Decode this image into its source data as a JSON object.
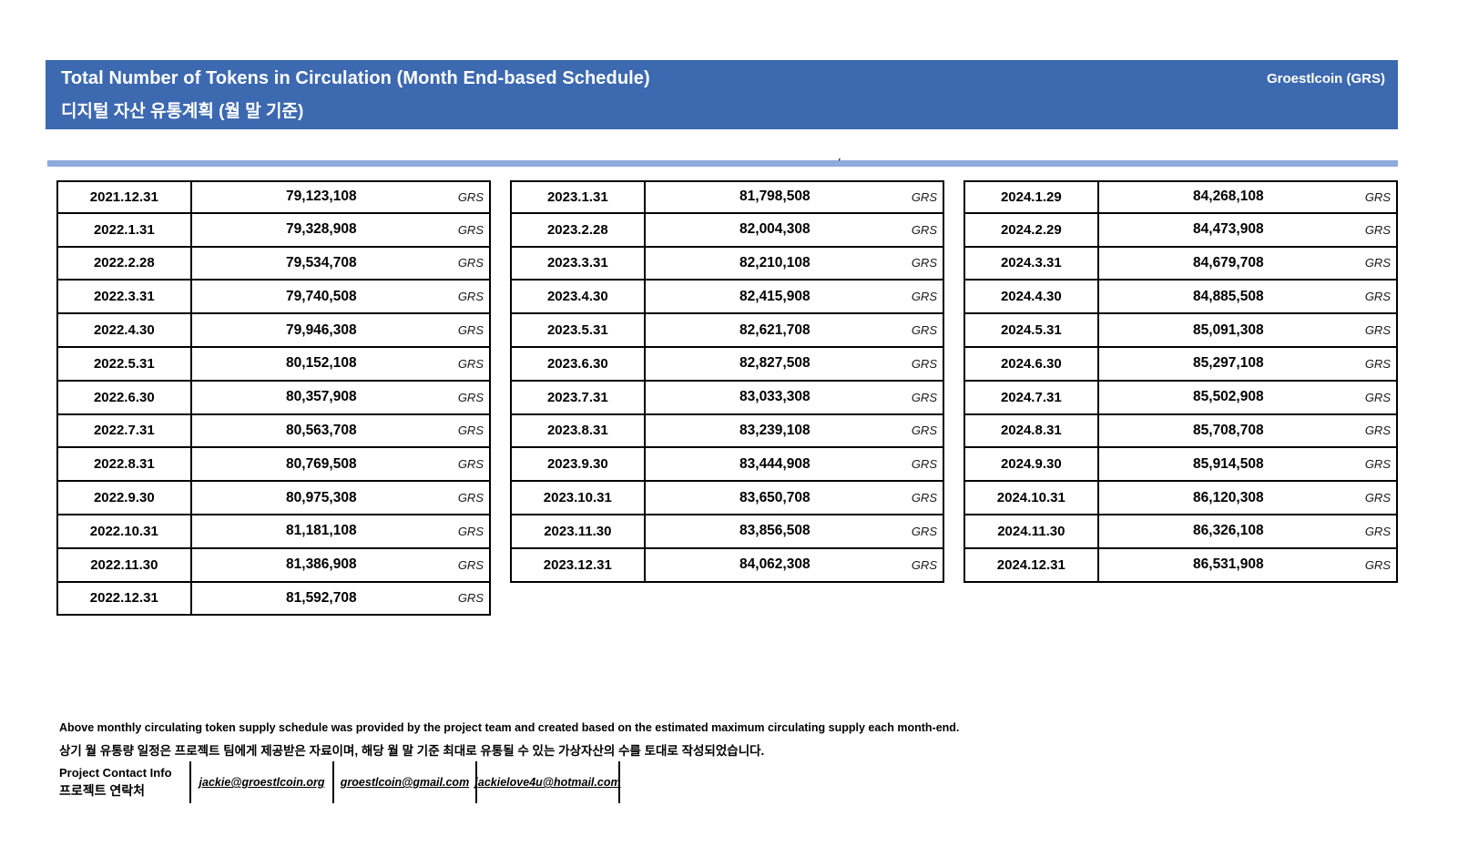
{
  "header": {
    "title_en": "Total Number of Tokens in Circulation (Month End-based Schedule)",
    "title_ko": "디지털 자산 유통계획 (월 말 기준)",
    "badge": "Groestlcoin (GRS)",
    "banner_color": "#3C69B0",
    "divider_color": "#8FAADC",
    "divider_mark": "'"
  },
  "unit": "GRS",
  "tables": [
    {
      "rows": [
        {
          "date": "2021.12.31",
          "value": "79,123,108"
        },
        {
          "date": "2022.1.31",
          "value": "79,328,908"
        },
        {
          "date": "2022.2.28",
          "value": "79,534,708"
        },
        {
          "date": "2022.3.31",
          "value": "79,740,508"
        },
        {
          "date": "2022.4.30",
          "value": "79,946,308"
        },
        {
          "date": "2022.5.31",
          "value": "80,152,108"
        },
        {
          "date": "2022.6.30",
          "value": "80,357,908"
        },
        {
          "date": "2022.7.31",
          "value": "80,563,708"
        },
        {
          "date": "2022.8.31",
          "value": "80,769,508"
        },
        {
          "date": "2022.9.30",
          "value": "80,975,308"
        },
        {
          "date": "2022.10.31",
          "value": "81,181,108"
        },
        {
          "date": "2022.11.30",
          "value": "81,386,908"
        },
        {
          "date": "2022.12.31",
          "value": "81,592,708"
        }
      ]
    },
    {
      "rows": [
        {
          "date": "2023.1.31",
          "value": "81,798,508"
        },
        {
          "date": "2023.2.28",
          "value": "82,004,308"
        },
        {
          "date": "2023.3.31",
          "value": "82,210,108"
        },
        {
          "date": "2023.4.30",
          "value": "82,415,908"
        },
        {
          "date": "2023.5.31",
          "value": "82,621,708"
        },
        {
          "date": "2023.6.30",
          "value": "82,827,508"
        },
        {
          "date": "2023.7.31",
          "value": "83,033,308"
        },
        {
          "date": "2023.8.31",
          "value": "83,239,108"
        },
        {
          "date": "2023.9.30",
          "value": "83,444,908"
        },
        {
          "date": "2023.10.31",
          "value": "83,650,708"
        },
        {
          "date": "2023.11.30",
          "value": "83,856,508"
        },
        {
          "date": "2023.12.31",
          "value": "84,062,308"
        }
      ]
    },
    {
      "rows": [
        {
          "date": "2024.1.29",
          "value": "84,268,108"
        },
        {
          "date": "2024.2.29",
          "value": "84,473,908"
        },
        {
          "date": "2024.3.31",
          "value": "84,679,708"
        },
        {
          "date": "2024.4.30",
          "value": "84,885,508"
        },
        {
          "date": "2024.5.31",
          "value": "85,091,308"
        },
        {
          "date": "2024.6.30",
          "value": "85,297,108"
        },
        {
          "date": "2024.7.31",
          "value": "85,502,908"
        },
        {
          "date": "2024.8.31",
          "value": "85,708,708"
        },
        {
          "date": "2024.9.30",
          "value": "85,914,508"
        },
        {
          "date": "2024.10.31",
          "value": "86,120,308"
        },
        {
          "date": "2024.11.30",
          "value": "86,326,108"
        },
        {
          "date": "2024.12.31",
          "value": "86,531,908"
        }
      ]
    }
  ],
  "notes": {
    "en": "Above monthly circulating token supply schedule was provided by the project team and created based on the estimated maximum circulating supply each month-end.",
    "ko": "상기 월 유통량 일정은 프로젝트 팀에게 제공받은 자료이며, 해당 월 말 기준 최대로 유통될 수 있는 가상자산의 수를 토대로 작성되었습니다."
  },
  "contact": {
    "label_en": "Project Contact Info",
    "label_ko": "프로젝트 연락처",
    "emails": [
      "jackie@groestlcoin.org",
      "groestlcoin@gmail.com",
      "jackielove4u@hotmail.com"
    ]
  }
}
